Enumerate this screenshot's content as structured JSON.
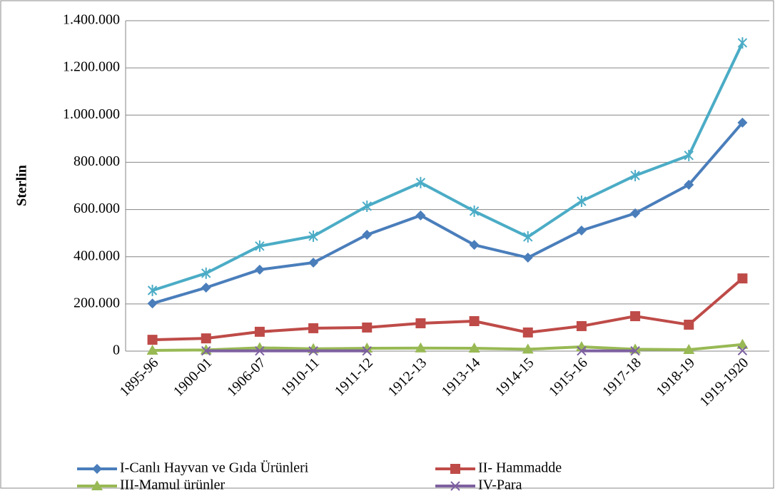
{
  "chart_data": {
    "type": "line",
    "y_label": "Sterlin",
    "categories": [
      "1895-96",
      "1900-01",
      "1906-07",
      "1910-11",
      "1911-12",
      "1912-13",
      "1913-14",
      "1914-15",
      "1915-16",
      "1917-18",
      "1918-19",
      "1919-1920"
    ],
    "series": [
      {
        "name": "I-Canlı Hayvan ve Gıda Ürünleri",
        "color": "#4a7ebb",
        "marker": "diamond",
        "values": [
          202000,
          269000,
          345000,
          375000,
          493000,
          575000,
          450000,
          396000,
          511000,
          584000,
          705000,
          968000
        ]
      },
      {
        "name": "II- Hammadde",
        "color": "#be4b48",
        "marker": "square",
        "values": [
          48000,
          54000,
          82000,
          97000,
          100000,
          118000,
          127000,
          79000,
          106000,
          148000,
          112000,
          308000
        ]
      },
      {
        "name": "III-Mamul ürünler",
        "color": "#98b954",
        "marker": "triangle",
        "values": [
          3000,
          5000,
          14000,
          10000,
          12000,
          13000,
          12000,
          8000,
          18000,
          8000,
          6000,
          28000
        ]
      },
      {
        "name": "IV-Para",
        "color": "#7d60a0",
        "marker": "x",
        "values": [
          null,
          1000,
          1000,
          1000,
          1000,
          null,
          null,
          null,
          1000,
          1000,
          null,
          2000
        ]
      },
      {
        "color": "#4bacc6",
        "marker": "asterisk",
        "values": [
          257000,
          330000,
          445000,
          487000,
          614000,
          714000,
          593000,
          484000,
          635000,
          744000,
          829000,
          1306000
        ]
      }
    ],
    "ylim": [
      0,
      1400000
    ],
    "yticks": [
      0,
      {
        "value": 200000,
        "label": "200.000"
      },
      {
        "value": 400000,
        "label": "400.000"
      },
      {
        "value": 600000,
        "label": "600.000"
      },
      {
        "value": 800000,
        "label": "800.000"
      },
      {
        "value": 1000000,
        "label": "1.000.000"
      },
      {
        "value": 1200000,
        "label": "1.200.000"
      },
      {
        "value": 1400000,
        "label": "1.400.000"
      }
    ],
    "grid": true
  }
}
